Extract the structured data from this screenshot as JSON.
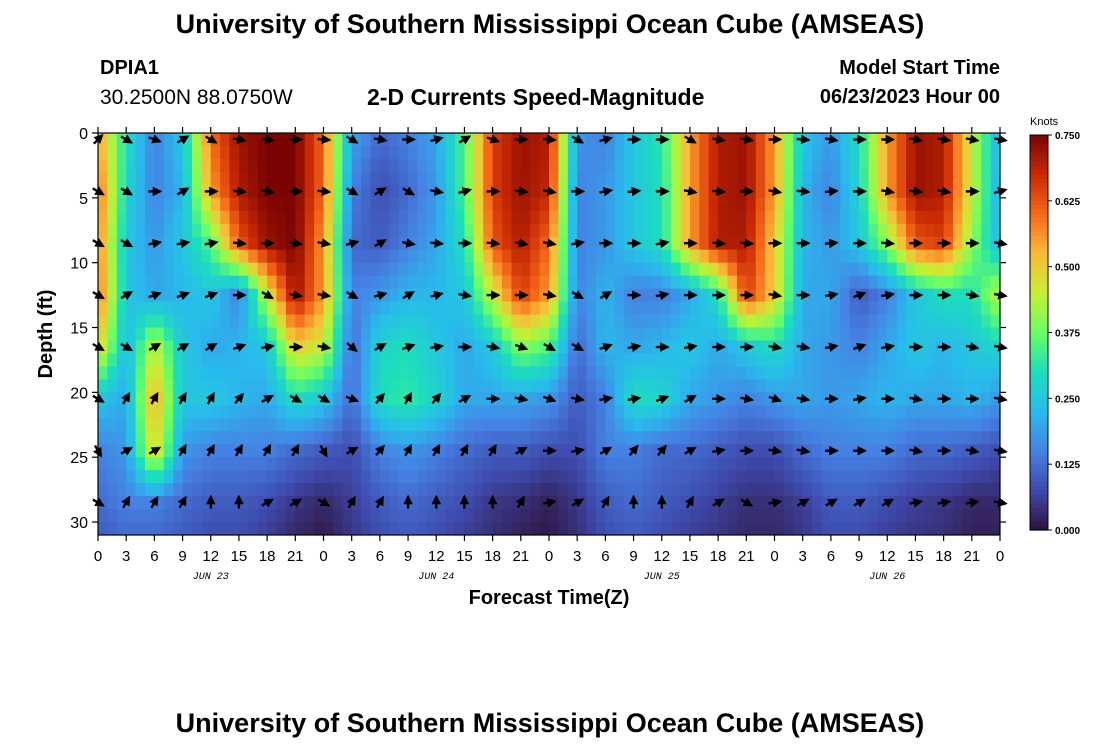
{
  "header": {
    "title": "University of Southern Mississippi Ocean Cube (AMSEAS)",
    "station": "DPIA1",
    "coords": "30.2500N  88.0750W",
    "subtitle": "2-D Currents Speed-Magnitude",
    "model_start_label": "Model Start Time",
    "model_start_value": "06/23/2023 Hour 00"
  },
  "footer": {
    "title": "University of Southern Mississippi Ocean Cube (AMSEAS)"
  },
  "chart_data": {
    "type": "heatmap",
    "title": "2-D Currents Speed-Magnitude",
    "xlabel": "Forecast Time(Z)",
    "ylabel": "Depth (ft)",
    "xticks": [
      "0",
      "3",
      "6",
      "9",
      "12",
      "15",
      "18",
      "21",
      "0",
      "3",
      "6",
      "9",
      "12",
      "15",
      "18",
      "21",
      "0",
      "3",
      "6",
      "9",
      "12",
      "15",
      "18",
      "21",
      "0",
      "3",
      "6",
      "9",
      "12",
      "15",
      "18",
      "21",
      "0"
    ],
    "day_labels": [
      {
        "label": "JUN 23",
        "hour": 12
      },
      {
        "label": "JUN 24",
        "hour": 36
      },
      {
        "label": "JUN 25",
        "hour": 60
      },
      {
        "label": "JUN 26",
        "hour": 84
      }
    ],
    "xlim": [
      0,
      96
    ],
    "ylim": [
      31,
      0
    ],
    "yticks": [
      0,
      5,
      10,
      15,
      20,
      25,
      30
    ],
    "colorbar": {
      "unit": "Knots",
      "range": [
        0,
        0.75
      ],
      "ticks": [
        "0.750",
        "0.625",
        "0.500",
        "0.375",
        "0.250",
        "0.125",
        "0.000"
      ]
    },
    "vector_depths_ft": [
      0.5,
      4.5,
      8.5,
      12.5,
      16.5,
      20.5,
      24.5,
      28.5
    ],
    "vector_hours": [
      0,
      3,
      6,
      9,
      12,
      15,
      18,
      21,
      24,
      27,
      30,
      33,
      36,
      39,
      42,
      45,
      48,
      51,
      54,
      57,
      60,
      63,
      66,
      69,
      72,
      75,
      78,
      81,
      84,
      87,
      90,
      93,
      96
    ],
    "speed_knots_grid": {
      "depths_ft": [
        0,
        4.5,
        8.5,
        12.5,
        16.5,
        20.5,
        24.5,
        28.5,
        31
      ],
      "hours": [
        0,
        3,
        6,
        9,
        12,
        15,
        18,
        21,
        24,
        27,
        30,
        33,
        36,
        39,
        42,
        45,
        48,
        51,
        54,
        57,
        60,
        63,
        66,
        69,
        72,
        75,
        78,
        81,
        84,
        87,
        90,
        93,
        96
      ],
      "values": [
        [
          0.55,
          0.3,
          0.15,
          0.25,
          0.6,
          0.72,
          0.75,
          0.75,
          0.6,
          0.2,
          0.12,
          0.15,
          0.2,
          0.35,
          0.65,
          0.72,
          0.7,
          0.18,
          0.15,
          0.25,
          0.32,
          0.55,
          0.7,
          0.72,
          0.55,
          0.25,
          0.18,
          0.3,
          0.55,
          0.72,
          0.7,
          0.45,
          0.2
        ],
        [
          0.6,
          0.28,
          0.15,
          0.22,
          0.55,
          0.7,
          0.75,
          0.75,
          0.6,
          0.15,
          0.08,
          0.12,
          0.18,
          0.35,
          0.65,
          0.72,
          0.68,
          0.15,
          0.18,
          0.25,
          0.3,
          0.55,
          0.7,
          0.72,
          0.55,
          0.22,
          0.15,
          0.28,
          0.55,
          0.72,
          0.7,
          0.45,
          0.2
        ],
        [
          0.58,
          0.25,
          0.18,
          0.25,
          0.35,
          0.62,
          0.72,
          0.75,
          0.55,
          0.12,
          0.1,
          0.15,
          0.2,
          0.3,
          0.62,
          0.7,
          0.6,
          0.15,
          0.18,
          0.25,
          0.3,
          0.55,
          0.7,
          0.7,
          0.5,
          0.22,
          0.18,
          0.25,
          0.4,
          0.62,
          0.65,
          0.4,
          0.22
        ],
        [
          0.6,
          0.25,
          0.2,
          0.22,
          0.25,
          0.15,
          0.45,
          0.72,
          0.55,
          0.15,
          0.18,
          0.22,
          0.22,
          0.25,
          0.45,
          0.65,
          0.55,
          0.15,
          0.22,
          0.15,
          0.15,
          0.2,
          0.3,
          0.65,
          0.5,
          0.2,
          0.2,
          0.1,
          0.15,
          0.25,
          0.3,
          0.3,
          0.45
        ],
        [
          0.5,
          0.22,
          0.45,
          0.25,
          0.2,
          0.22,
          0.25,
          0.5,
          0.45,
          0.12,
          0.28,
          0.3,
          0.25,
          0.2,
          0.25,
          0.4,
          0.35,
          0.12,
          0.22,
          0.2,
          0.22,
          0.25,
          0.2,
          0.25,
          0.3,
          0.2,
          0.18,
          0.15,
          0.2,
          0.25,
          0.22,
          0.25,
          0.28
        ],
        [
          0.25,
          0.2,
          0.55,
          0.25,
          0.25,
          0.22,
          0.2,
          0.3,
          0.25,
          0.12,
          0.3,
          0.32,
          0.28,
          0.2,
          0.2,
          0.2,
          0.18,
          0.1,
          0.15,
          0.3,
          0.28,
          0.2,
          0.18,
          0.15,
          0.18,
          0.2,
          0.18,
          0.2,
          0.22,
          0.2,
          0.2,
          0.22,
          0.18
        ],
        [
          0.15,
          0.18,
          0.5,
          0.18,
          0.15,
          0.15,
          0.15,
          0.12,
          0.1,
          0.08,
          0.15,
          0.18,
          0.15,
          0.12,
          0.1,
          0.1,
          0.08,
          0.08,
          0.15,
          0.15,
          0.12,
          0.12,
          0.1,
          0.08,
          0.08,
          0.12,
          0.15,
          0.15,
          0.15,
          0.12,
          0.12,
          0.1,
          0.08
        ],
        [
          0.12,
          0.15,
          0.15,
          0.12,
          0.1,
          0.1,
          0.08,
          0.05,
          0.03,
          0.06,
          0.1,
          0.12,
          0.1,
          0.08,
          0.05,
          0.04,
          0.02,
          0.05,
          0.1,
          0.12,
          0.1,
          0.08,
          0.06,
          0.04,
          0.04,
          0.06,
          0.1,
          0.1,
          0.08,
          0.06,
          0.05,
          0.03,
          0.03
        ],
        [
          0.1,
          0.12,
          0.12,
          0.1,
          0.08,
          0.08,
          0.06,
          0.03,
          0.01,
          0.05,
          0.08,
          0.1,
          0.08,
          0.06,
          0.04,
          0.02,
          0.01,
          0.04,
          0.08,
          0.1,
          0.08,
          0.06,
          0.05,
          0.03,
          0.03,
          0.05,
          0.08,
          0.08,
          0.06,
          0.05,
          0.04,
          0.02,
          0.02
        ]
      ]
    },
    "vector_angles_deg": [
      [
        45,
        120,
        110,
        60,
        120,
        100,
        100,
        90,
        95,
        120,
        100,
        90,
        75,
        60,
        110,
        90,
        95,
        120,
        75,
        90,
        90,
        120,
        100,
        100,
        90,
        95,
        100,
        90,
        90,
        100,
        100,
        100,
        100
      ],
      [
        120,
        120,
        90,
        60,
        90,
        95,
        100,
        90,
        95,
        120,
        60,
        120,
        100,
        75,
        90,
        95,
        100,
        90,
        80,
        85,
        90,
        100,
        95,
        90,
        100,
        95,
        85,
        90,
        100,
        95,
        100,
        90,
        75
      ],
      [
        120,
        120,
        80,
        80,
        80,
        95,
        90,
        100,
        100,
        75,
        60,
        100,
        95,
        90,
        95,
        100,
        100,
        80,
        90,
        90,
        80,
        90,
        95,
        95,
        90,
        90,
        85,
        90,
        95,
        90,
        90,
        90,
        100
      ],
      [
        120,
        60,
        70,
        70,
        70,
        90,
        120,
        100,
        100,
        120,
        75,
        60,
        75,
        100,
        90,
        90,
        100,
        120,
        60,
        90,
        80,
        90,
        90,
        90,
        100,
        90,
        80,
        70,
        80,
        90,
        90,
        100,
        100
      ],
      [
        120,
        120,
        60,
        60,
        60,
        70,
        80,
        90,
        100,
        130,
        60,
        70,
        80,
        90,
        100,
        110,
        120,
        120,
        70,
        80,
        90,
        80,
        90,
        90,
        100,
        100,
        80,
        70,
        80,
        90,
        90,
        100,
        100
      ],
      [
        120,
        30,
        30,
        30,
        30,
        40,
        60,
        120,
        120,
        110,
        40,
        30,
        40,
        60,
        90,
        100,
        110,
        100,
        80,
        80,
        70,
        60,
        90,
        100,
        110,
        100,
        90,
        80,
        90,
        100,
        90,
        90,
        100
      ],
      [
        150,
        60,
        60,
        30,
        30,
        30,
        30,
        30,
        150,
        60,
        40,
        30,
        30,
        30,
        30,
        60,
        90,
        80,
        60,
        40,
        40,
        60,
        80,
        90,
        100,
        100,
        90,
        90,
        90,
        100,
        90,
        100,
        100
      ],
      [
        120,
        30,
        30,
        30,
        0,
        0,
        60,
        60,
        120,
        30,
        30,
        0,
        0,
        0,
        0,
        30,
        80,
        60,
        30,
        0,
        0,
        30,
        60,
        120,
        80,
        60,
        60,
        60,
        60,
        80,
        80,
        80,
        100
      ]
    ]
  }
}
